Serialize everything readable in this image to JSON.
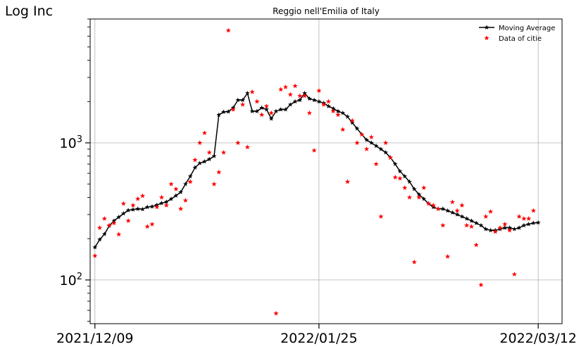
{
  "chart_data": {
    "type": "line",
    "title": "Reggio nell'Emilia of Italy",
    "ylabel": "Log Inc",
    "xlabel": "",
    "yscale": "log",
    "ylim": [
      48,
      8000
    ],
    "xlim": [
      "2021-12-08",
      "2022-03-17"
    ],
    "x_ticks": [
      "2021/12/09",
      "2022/01/25",
      "2022/03/12"
    ],
    "y_ticks": [
      {
        "value": 100,
        "base": "10",
        "exp": "2"
      },
      {
        "value": 1000,
        "base": "10",
        "exp": "3"
      }
    ],
    "grid": true,
    "legend_position": "top-right",
    "colors": {
      "moving_average": "#000000",
      "data": "#ff0000",
      "grid": "#b0b0b0"
    },
    "series": [
      {
        "name": "Moving Average",
        "style": "line-star",
        "x_start": "2021-12-09",
        "values": [
          173,
          197,
          216,
          248,
          270,
          287,
          305,
          322,
          326,
          330,
          328,
          340,
          343,
          352,
          363,
          371,
          390,
          412,
          437,
          500,
          570,
          660,
          710,
          730,
          760,
          800,
          1600,
          1680,
          1690,
          1800,
          2050,
          2050,
          2300,
          1700,
          1700,
          1800,
          1750,
          1500,
          1700,
          1750,
          1750,
          1900,
          2000,
          2050,
          2300,
          2100,
          2050,
          2000,
          1950,
          1850,
          1780,
          1700,
          1650,
          1550,
          1400,
          1270,
          1150,
          1050,
          1000,
          950,
          900,
          850,
          780,
          700,
          620,
          570,
          520,
          460,
          420,
          390,
          360,
          340,
          330,
          330,
          320,
          310,
          300,
          290,
          280,
          270,
          260,
          250,
          235,
          230,
          230,
          235,
          240,
          240,
          235,
          240,
          250,
          255,
          260,
          262
        ]
      },
      {
        "name": "Data of citie",
        "style": "star",
        "points": [
          [
            "2021-12-09",
            150
          ],
          [
            "2021-12-10",
            240
          ],
          [
            "2021-12-11",
            280
          ],
          [
            "2021-12-12",
            250
          ],
          [
            "2021-12-13",
            260
          ],
          [
            "2021-12-14",
            215
          ],
          [
            "2021-12-15",
            360
          ],
          [
            "2021-12-16",
            270
          ],
          [
            "2021-12-17",
            350
          ],
          [
            "2021-12-18",
            390
          ],
          [
            "2021-12-19",
            410
          ],
          [
            "2021-12-20",
            245
          ],
          [
            "2021-12-21",
            255
          ],
          [
            "2021-12-22",
            340
          ],
          [
            "2021-12-23",
            400
          ],
          [
            "2021-12-24",
            350
          ],
          [
            "2021-12-25",
            500
          ],
          [
            "2021-12-26",
            460
          ],
          [
            "2021-12-27",
            330
          ],
          [
            "2021-12-28",
            380
          ],
          [
            "2021-12-29",
            520
          ],
          [
            "2021-12-30",
            750
          ],
          [
            "2021-12-31",
            1000
          ],
          [
            "2022-01-01",
            1180
          ],
          [
            "2022-01-02",
            850
          ],
          [
            "2022-01-03",
            500
          ],
          [
            "2022-01-04",
            610
          ],
          [
            "2022-01-05",
            850
          ],
          [
            "2022-01-06",
            6600
          ],
          [
            "2022-01-07",
            1750
          ],
          [
            "2022-01-08",
            1000
          ],
          [
            "2022-01-09",
            1900
          ],
          [
            "2022-01-10",
            930
          ],
          [
            "2022-01-11",
            2350
          ],
          [
            "2022-01-12",
            2000
          ],
          [
            "2022-01-13",
            1600
          ],
          [
            "2022-01-14",
            1850
          ],
          [
            "2022-01-15",
            1650
          ],
          [
            "2022-01-16",
            57
          ],
          [
            "2022-01-17",
            2450
          ],
          [
            "2022-01-18",
            2550
          ],
          [
            "2022-01-19",
            2250
          ],
          [
            "2022-01-20",
            2600
          ],
          [
            "2022-01-21",
            2200
          ],
          [
            "2022-01-22",
            2200
          ],
          [
            "2022-01-23",
            1650
          ],
          [
            "2022-01-24",
            880
          ],
          [
            "2022-01-25",
            2400
          ],
          [
            "2022-01-26",
            1900
          ],
          [
            "2022-01-27",
            2000
          ],
          [
            "2022-01-28",
            1700
          ],
          [
            "2022-01-29",
            1600
          ],
          [
            "2022-01-30",
            1250
          ],
          [
            "2022-01-31",
            520
          ],
          [
            "2022-02-01",
            1450
          ],
          [
            "2022-02-02",
            1000
          ],
          [
            "2022-02-03",
            1150
          ],
          [
            "2022-02-04",
            900
          ],
          [
            "2022-02-05",
            1100
          ],
          [
            "2022-02-06",
            700
          ],
          [
            "2022-02-07",
            290
          ],
          [
            "2022-02-08",
            1000
          ],
          [
            "2022-02-09",
            780
          ],
          [
            "2022-02-10",
            560
          ],
          [
            "2022-02-11",
            550
          ],
          [
            "2022-02-12",
            470
          ],
          [
            "2022-02-13",
            400
          ],
          [
            "2022-02-14",
            135
          ],
          [
            "2022-02-15",
            400
          ],
          [
            "2022-02-16",
            470
          ],
          [
            "2022-02-17",
            360
          ],
          [
            "2022-02-18",
            350
          ],
          [
            "2022-02-19",
            330
          ],
          [
            "2022-02-20",
            250
          ],
          [
            "2022-02-21",
            148
          ],
          [
            "2022-02-22",
            370
          ],
          [
            "2022-02-23",
            320
          ],
          [
            "2022-02-24",
            350
          ],
          [
            "2022-02-25",
            250
          ],
          [
            "2022-02-26",
            245
          ],
          [
            "2022-02-27",
            180
          ],
          [
            "2022-02-28",
            92
          ],
          [
            "2022-03-01",
            290
          ],
          [
            "2022-03-02",
            315
          ],
          [
            "2022-03-03",
            225
          ],
          [
            "2022-03-04",
            240
          ],
          [
            "2022-03-05",
            255
          ],
          [
            "2022-03-06",
            230
          ],
          [
            "2022-03-07",
            110
          ],
          [
            "2022-03-08",
            290
          ],
          [
            "2022-03-09",
            280
          ],
          [
            "2022-03-10",
            280
          ],
          [
            "2022-03-11",
            320
          ]
        ]
      }
    ]
  }
}
